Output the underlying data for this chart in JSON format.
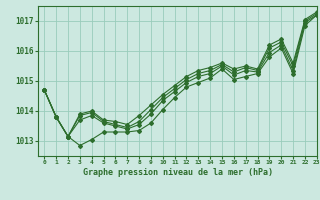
{
  "title": "Graphe pression niveau de la mer (hPa)",
  "background_color": "#cce8e0",
  "grid_color": "#99ccbb",
  "line_color": "#2d6e2d",
  "xlim": [
    -0.5,
    23
  ],
  "ylim": [
    1012.5,
    1017.5
  ],
  "yticks": [
    1013,
    1014,
    1015,
    1016,
    1017
  ],
  "xticks": [
    0,
    1,
    2,
    3,
    4,
    5,
    6,
    7,
    8,
    9,
    10,
    11,
    12,
    13,
    14,
    15,
    16,
    17,
    18,
    19,
    20,
    21,
    22,
    23
  ],
  "series": [
    [
      1014.7,
      1013.8,
      1013.15,
      1012.85,
      1013.05,
      1013.3,
      1013.3,
      1013.3,
      1013.35,
      1013.6,
      1014.05,
      1014.45,
      1014.8,
      1014.95,
      1015.1,
      1015.4,
      1015.05,
      1015.15,
      1015.25,
      1015.8,
      1016.1,
      1015.25,
      1016.85,
      1017.2
    ],
    [
      1014.7,
      1013.8,
      1013.15,
      1013.7,
      1013.85,
      1013.6,
      1013.5,
      1013.4,
      1013.55,
      1013.9,
      1014.35,
      1014.65,
      1014.95,
      1015.15,
      1015.25,
      1015.5,
      1015.2,
      1015.35,
      1015.3,
      1015.95,
      1016.2,
      1015.35,
      1016.95,
      1017.2
    ],
    [
      1014.7,
      1013.8,
      1013.15,
      1013.85,
      1013.95,
      1013.65,
      1013.55,
      1013.45,
      1013.65,
      1014.05,
      1014.45,
      1014.75,
      1015.05,
      1015.25,
      1015.35,
      1015.55,
      1015.3,
      1015.45,
      1015.35,
      1016.1,
      1016.3,
      1015.5,
      1017.0,
      1017.25
    ],
    [
      1014.7,
      1013.8,
      1013.15,
      1013.9,
      1014.0,
      1013.7,
      1013.65,
      1013.55,
      1013.85,
      1014.2,
      1014.55,
      1014.85,
      1015.15,
      1015.35,
      1015.45,
      1015.6,
      1015.4,
      1015.5,
      1015.4,
      1016.2,
      1016.4,
      1015.6,
      1017.05,
      1017.3
    ]
  ]
}
